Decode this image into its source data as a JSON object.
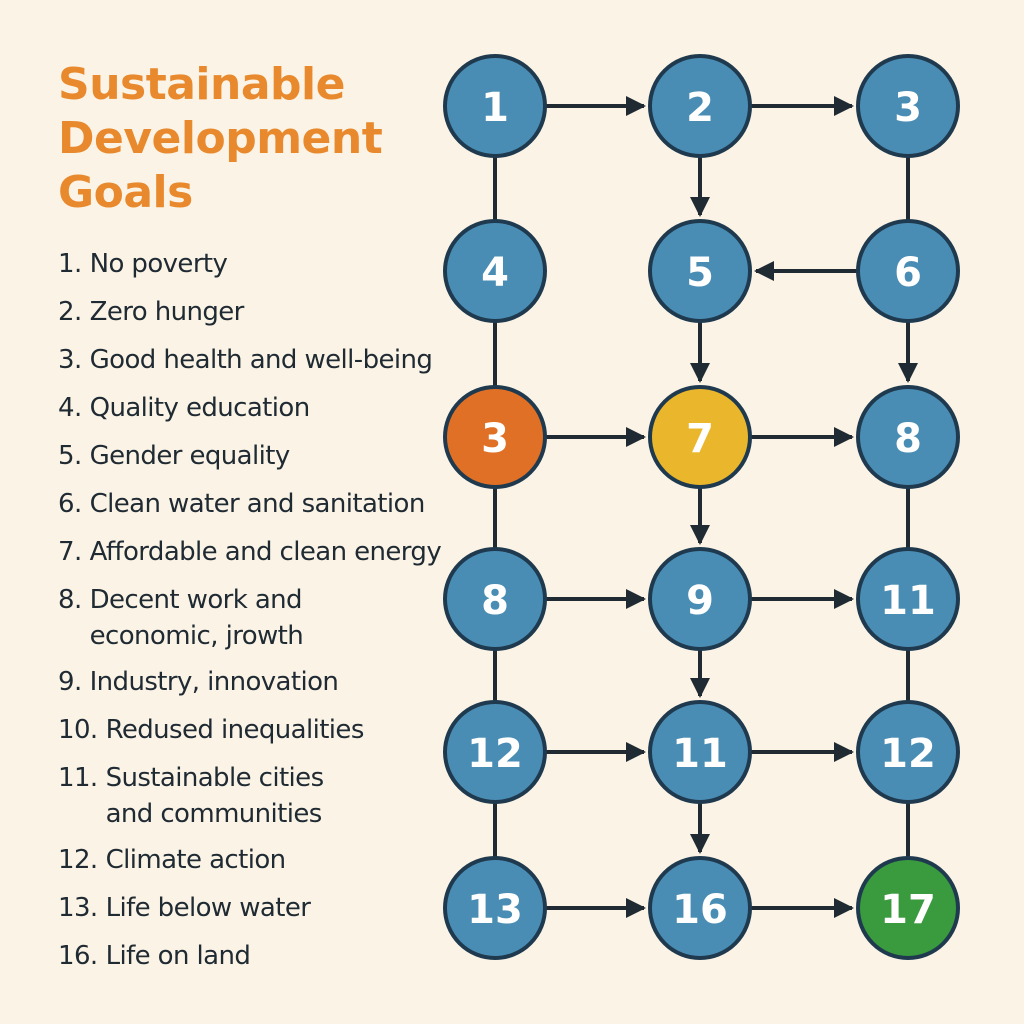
{
  "title": [
    "Sustainable",
    "Development",
    "Goals"
  ],
  "goals": [
    {
      "number": "1.",
      "text": "No poverty"
    },
    {
      "number": "2.",
      "text": "Zero hunger"
    },
    {
      "number": "3.",
      "text": "Good health and well-being"
    },
    {
      "number": "4.",
      "text": "Quality education"
    },
    {
      "number": "5.",
      "text": "Gender equality"
    },
    {
      "number": "6.",
      "text": "Clean water and sanitation"
    },
    {
      "number": "7.",
      "text": "Affordable and clean energy"
    },
    {
      "number": "8.",
      "text": "Decent work and economic, jrowth"
    },
    {
      "number": "9.",
      "text": "Industry, innovation"
    },
    {
      "number": "10.",
      "text": "Redused inequalities"
    },
    {
      "number": "11.",
      "text": "Sustainable cities and communities"
    },
    {
      "number": "12.",
      "text": "Climate action"
    },
    {
      "number": "13.",
      "text": "Life below water"
    },
    {
      "number": "16.",
      "text": "Life on land"
    }
  ],
  "colors": {
    "default_node": "#4a8db4",
    "highlight_orange": "#e07025",
    "highlight_yellow": "#eab62b",
    "highlight_green": "#3a9a3e"
  },
  "nodes": [
    {
      "id": "r1c1",
      "label": "1",
      "color": "default"
    },
    {
      "id": "r1c2",
      "label": "2",
      "color": "default"
    },
    {
      "id": "r1c3",
      "label": "3",
      "color": "default"
    },
    {
      "id": "r2c1",
      "label": "4",
      "color": "default"
    },
    {
      "id": "r2c2",
      "label": "5",
      "color": "default"
    },
    {
      "id": "r2c3",
      "label": "6",
      "color": "default"
    },
    {
      "id": "r3c1",
      "label": "3",
      "color": "orange"
    },
    {
      "id": "r3c2",
      "label": "7",
      "color": "yellow"
    },
    {
      "id": "r3c3",
      "label": "8",
      "color": "default"
    },
    {
      "id": "r4c1",
      "label": "8",
      "color": "default"
    },
    {
      "id": "r4c2",
      "label": "9",
      "color": "default"
    },
    {
      "id": "r4c3",
      "label": "11",
      "color": "default"
    },
    {
      "id": "r5c1",
      "label": "12",
      "color": "default"
    },
    {
      "id": "r5c2",
      "label": "11",
      "color": "default"
    },
    {
      "id": "r5c3",
      "label": "12",
      "color": "default"
    },
    {
      "id": "r6c1",
      "label": "13",
      "color": "default"
    },
    {
      "id": "r6c2",
      "label": "16",
      "color": "default"
    },
    {
      "id": "r6c3",
      "label": "17",
      "color": "green"
    }
  ],
  "edges": [
    {
      "from": "r1c1",
      "to": "r1c2",
      "arrow": true
    },
    {
      "from": "r1c2",
      "to": "r1c3",
      "arrow": true
    },
    {
      "from": "r1c2",
      "to": "r2c2",
      "arrow": true
    },
    {
      "from": "r1c1",
      "to": "r2c1",
      "arrow": false
    },
    {
      "from": "r1c3",
      "to": "r2c3",
      "arrow": false
    },
    {
      "from": "r2c3",
      "to": "r2c2",
      "arrow": true
    },
    {
      "from": "r2c1",
      "to": "r3c1",
      "arrow": false
    },
    {
      "from": "r2c2",
      "to": "r3c2",
      "arrow": true
    },
    {
      "from": "r2c3",
      "to": "r3c3",
      "arrow": true
    },
    {
      "from": "r3c1",
      "to": "r3c2",
      "arrow": true
    },
    {
      "from": "r3c2",
      "to": "r3c3",
      "arrow": true
    },
    {
      "from": "r3c1",
      "to": "r4c1",
      "arrow": false
    },
    {
      "from": "r3c2",
      "to": "r4c2",
      "arrow": true
    },
    {
      "from": "r3c3",
      "to": "r4c3",
      "arrow": false
    },
    {
      "from": "r4c1",
      "to": "r4c2",
      "arrow": true
    },
    {
      "from": "r4c2",
      "to": "r4c3",
      "arrow": true
    },
    {
      "from": "r4c1",
      "to": "r5c1",
      "arrow": false
    },
    {
      "from": "r4c2",
      "to": "r5c2",
      "arrow": true
    },
    {
      "from": "r4c3",
      "to": "r5c3",
      "arrow": false
    },
    {
      "from": "r5c1",
      "to": "r5c2",
      "arrow": true
    },
    {
      "from": "r5c2",
      "to": "r5c3",
      "arrow": true
    },
    {
      "from": "r5c1",
      "to": "r6c1",
      "arrow": false
    },
    {
      "from": "r5c2",
      "to": "r6c2",
      "arrow": true
    },
    {
      "from": "r5c3",
      "to": "r6c3",
      "arrow": false
    },
    {
      "from": "r6c1",
      "to": "r6c2",
      "arrow": true
    },
    {
      "from": "r6c2",
      "to": "r6c3",
      "arrow": true
    }
  ]
}
